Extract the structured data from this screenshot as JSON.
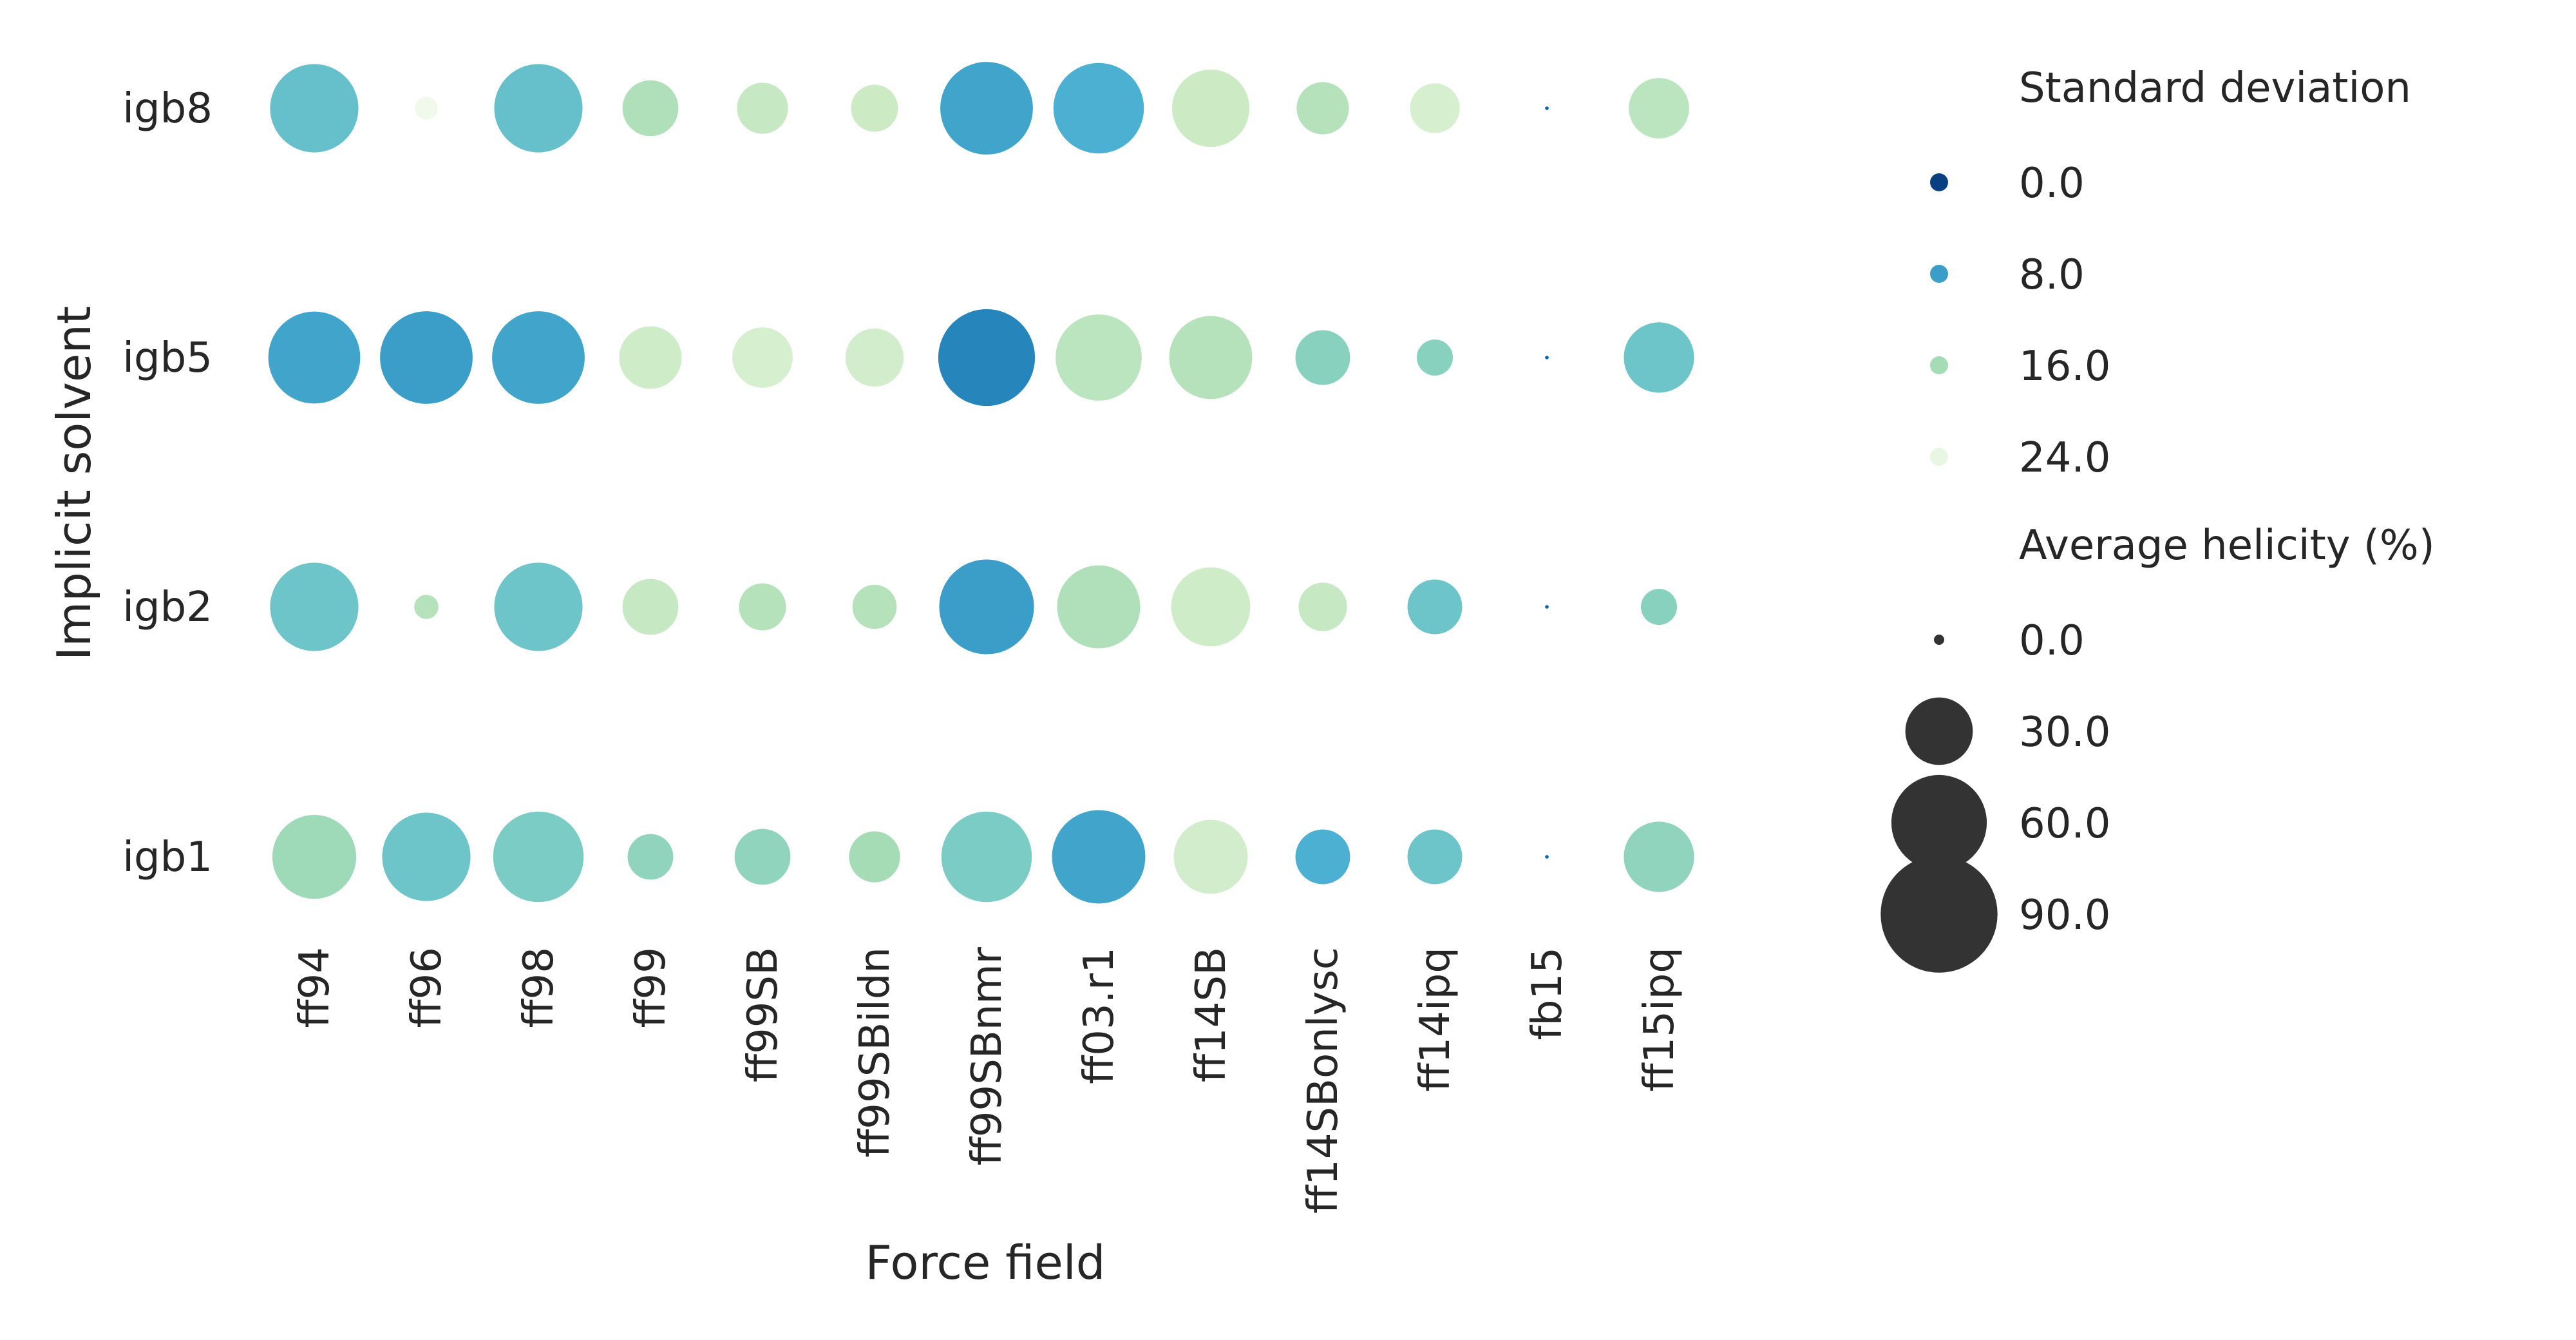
{
  "chart_data": {
    "type": "scatter",
    "xlabel": "Force field",
    "ylabel": "Implicit solvent",
    "categories_x": [
      "ff94",
      "ff96",
      "ff98",
      "ff99",
      "ff99SB",
      "ff99SBildn",
      "ff99SBnmr",
      "ff03.r1",
      "ff14SB",
      "ff14SBonlysc",
      "ff14ipq",
      "fb15",
      "ff15ipq"
    ],
    "categories_y": [
      "igb8",
      "igb5",
      "igb2",
      "igb1"
    ],
    "size_measure": "Average helicity (%)",
    "color_measure": "Standard deviation",
    "color_scale": {
      "min": 0,
      "max": 26,
      "low_color": "#084081",
      "high_color": "#f7fcf0"
    },
    "series": [
      {
        "name": "igb8",
        "helicity": [
          60,
          4,
          60,
          24,
          20,
          17,
          66,
          63,
          46,
          21,
          19,
          0.1,
          28
        ],
        "std_dev": [
          11.5,
          25,
          11.5,
          17,
          19,
          19.5,
          8.5,
          9.5,
          19.5,
          17.5,
          21,
          3,
          18
        ]
      },
      {
        "name": "igb5",
        "helicity": [
          65,
          66,
          66,
          30,
          28,
          26,
          72,
          57,
          53,
          23,
          10,
          0.1,
          38
        ],
        "std_dev": [
          8.5,
          8,
          8.5,
          20,
          21,
          20.5,
          6,
          18,
          17.5,
          14,
          14,
          3,
          12
        ]
      },
      {
        "name": "igb2",
        "helicity": [
          60,
          4.5,
          60,
          24,
          17,
          15,
          69,
          53,
          48,
          18,
          23,
          0.1,
          10
        ],
        "std_dev": [
          12,
          17.5,
          12,
          19,
          17.5,
          17.5,
          8,
          17,
          20,
          19,
          12,
          3,
          14
        ]
      },
      {
        "name": "igb1",
        "helicity": [
          54,
          60,
          63,
          16,
          24,
          20,
          63,
          67,
          42,
          23,
          23,
          0.1,
          38
        ],
        "std_dev": [
          15.5,
          12,
          13,
          14.5,
          14.5,
          16,
          13,
          8.5,
          20.5,
          9.5,
          12,
          3,
          14.5
        ]
      }
    ],
    "legend": {
      "color_title": "Standard deviation",
      "color_entries": [
        {
          "label": "0.0",
          "value": 0
        },
        {
          "label": "8.0",
          "value": 8
        },
        {
          "label": "16.0",
          "value": 16
        },
        {
          "label": "24.0",
          "value": 24
        }
      ],
      "size_title": "Average helicity (%)",
      "size_entries": [
        {
          "label": "0.0",
          "value": 0
        },
        {
          "label": "30.0",
          "value": 30
        },
        {
          "label": "60.0",
          "value": 60
        },
        {
          "label": "90.0",
          "value": 90
        }
      ],
      "placement": "right"
    }
  }
}
